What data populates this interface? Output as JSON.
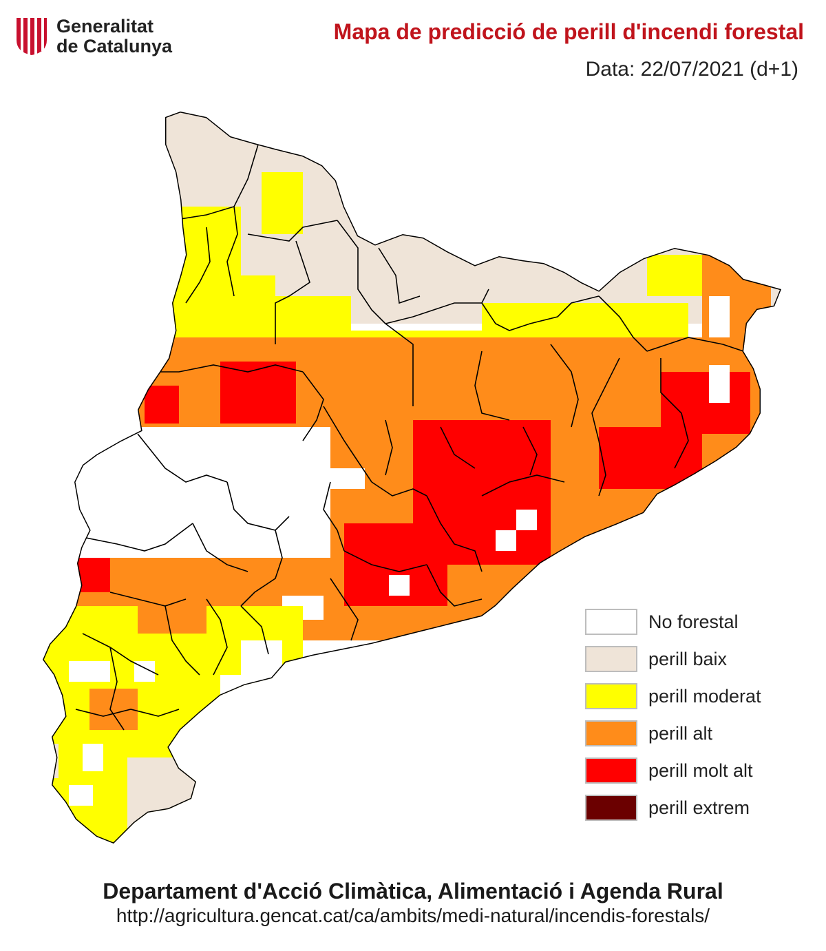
{
  "header": {
    "logo_line1": "Generalitat",
    "logo_line2": "de Catalunya",
    "title": "Mapa de predicció de perill d'incendi forestal",
    "date": "Data: 22/07/2021 (d+1)"
  },
  "colors": {
    "title_red": "#c0141c",
    "no_forestal": "#ffffff",
    "perill_baix": "#efe4d8",
    "perill_moderat": "#ffff00",
    "perill_alt": "#ff8c1a",
    "perill_molt_alt": "#ff0000",
    "perill_extrem": "#6b0000",
    "border": "#000000"
  },
  "legend": [
    {
      "label": "No forestal",
      "color": "#ffffff"
    },
    {
      "label": "perill baix",
      "color": "#efe4d8"
    },
    {
      "label": "perill moderat",
      "color": "#ffff00"
    },
    {
      "label": "perill alt",
      "color": "#ff8c1a"
    },
    {
      "label": "perill molt alt",
      "color": "#ff0000"
    },
    {
      "label": "perill extrem",
      "color": "#6b0000"
    }
  ],
  "footer": {
    "department": "Departament d'Acció Climàtica, Alimentació i Agenda Rural",
    "url": "http://agricultura.gencat.cat/ca/ambits/medi-natural/incendis-forestals/"
  }
}
